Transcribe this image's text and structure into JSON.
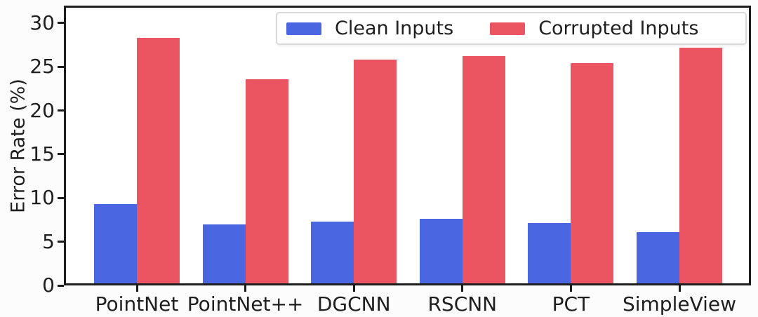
{
  "chart_data": {
    "type": "bar",
    "title": "",
    "xlabel": "",
    "ylabel": "Error Rate (%)",
    "categories": [
      "PointNet",
      "PointNet++",
      "DGCNN",
      "RSCNN",
      "PCT",
      "SimpleView"
    ],
    "series": [
      {
        "name": "Clean Inputs",
        "color": "#4a66e0",
        "values": [
          9.3,
          7.0,
          7.3,
          7.6,
          7.1,
          6.1
        ]
      },
      {
        "name": "Corrupted Inputs",
        "color": "#ea5561",
        "values": [
          28.3,
          23.6,
          25.8,
          26.2,
          25.4,
          27.2
        ]
      }
    ],
    "ylim": [
      0,
      32
    ],
    "yticks": [
      0,
      5,
      10,
      15,
      20,
      25,
      30
    ],
    "grid": false,
    "legend_position": "upper center-right inside plot",
    "frame_color": "#1c1c1c"
  }
}
